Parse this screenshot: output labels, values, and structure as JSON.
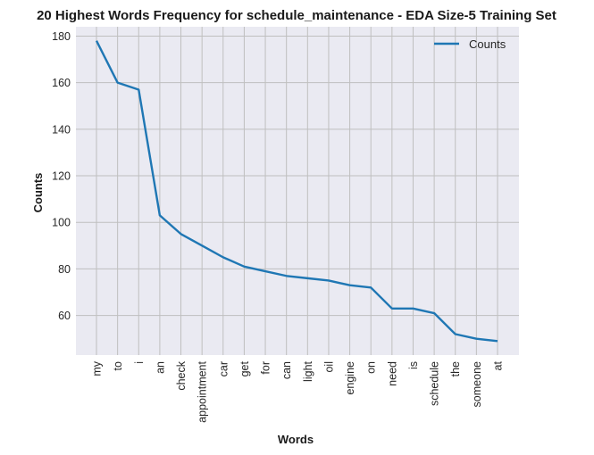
{
  "chart_data": {
    "type": "line",
    "title": "20 Highest Words Frequency for schedule_maintenance - EDA Size-5 Training Set",
    "xlabel": "Words",
    "ylabel": "Counts",
    "categories": [
      "my",
      "to",
      "i",
      "an",
      "check",
      "appointment",
      "car",
      "get",
      "for",
      "can",
      "light",
      "oil",
      "engine",
      "on",
      "need",
      "is",
      "schedule",
      "the",
      "someone",
      "at"
    ],
    "series": [
      {
        "name": "Counts",
        "values": [
          178,
          160,
          157,
          103,
          95,
          90,
          85,
          81,
          79,
          77,
          76,
          75,
          73,
          72,
          63,
          63,
          61,
          52,
          50,
          49
        ]
      }
    ],
    "ylim": [
      43,
      184
    ],
    "yticks": [
      60,
      80,
      100,
      120,
      140,
      160,
      180
    ],
    "grid": true,
    "legend": "top-right",
    "colors": {
      "line": "#1f77b4",
      "plot_bg": "#eaeaf2",
      "grid": "#bfbfbf"
    }
  }
}
